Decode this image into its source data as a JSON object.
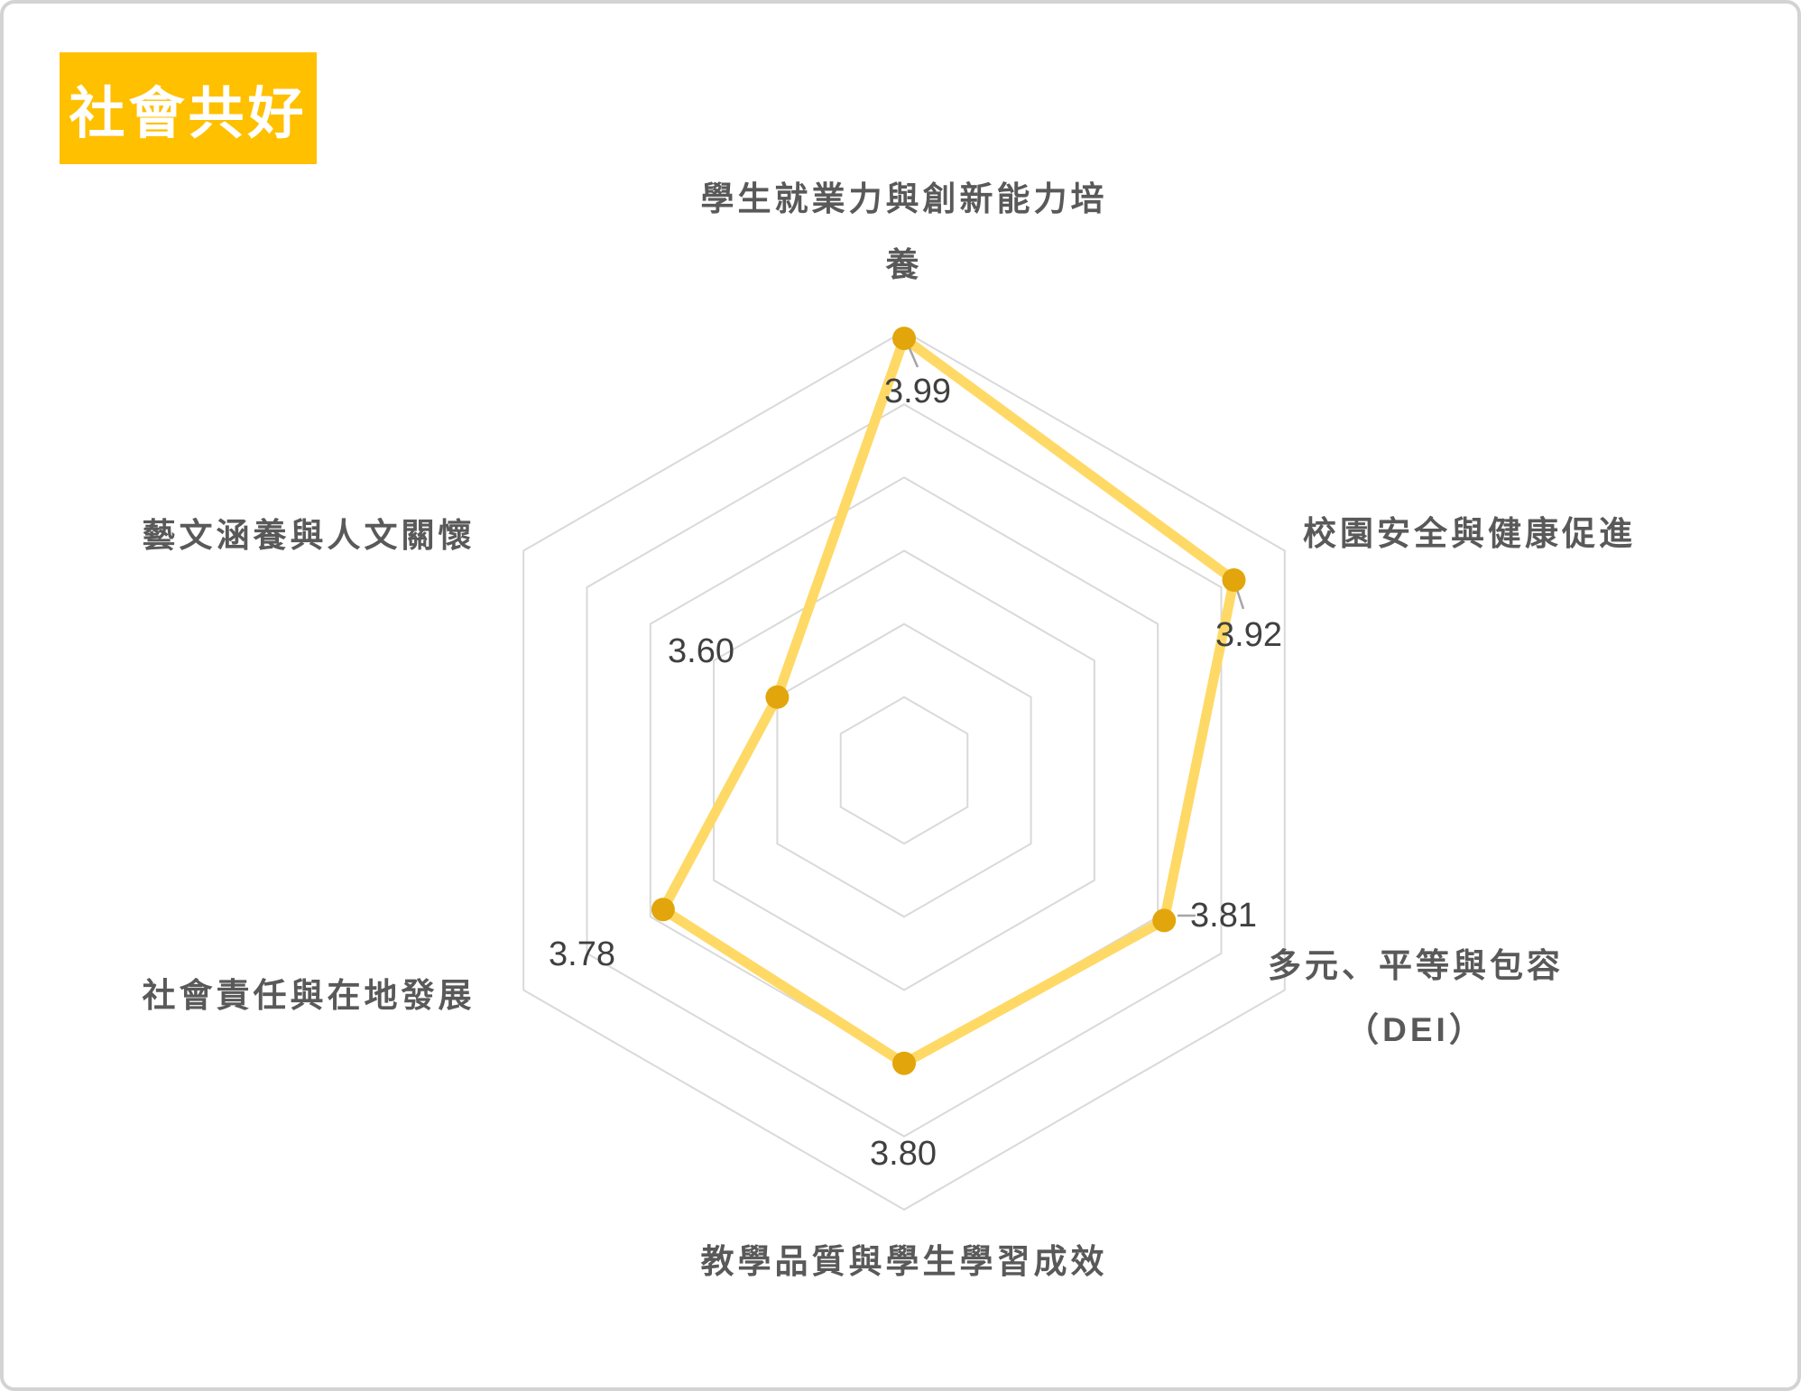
{
  "badge": {
    "label": "社會共好",
    "bg_color": "#FFC000",
    "text_color": "#FFFFFF"
  },
  "chart_data": {
    "type": "radar",
    "categories": [
      "學生就業力與創新能力培養",
      "校園安全與健康促進",
      "多元、平等與包容（DEI）",
      "教學品質與學生學習成效",
      "社會責任與在地發展",
      "藝文涵養與人文關懷"
    ],
    "series": [
      {
        "name": "社會共好",
        "values": [
          3.99,
          3.92,
          3.81,
          3.8,
          3.78,
          3.6
        ]
      }
    ],
    "point_labels": [
      "3.99",
      "3.92",
      "3.81",
      "3.80",
      "3.78",
      "3.60"
    ],
    "axis": {
      "min": 3.4,
      "max": 4.0,
      "rings": 6,
      "tick_labels_visible": false
    },
    "grid": true,
    "legend": false,
    "colors": {
      "line": "#FFD966",
      "marker": "#E2A60C",
      "grid": "#D9D9D9",
      "leader": "#A6A6A6",
      "category_label": "#595959",
      "value_label": "#404040"
    }
  }
}
